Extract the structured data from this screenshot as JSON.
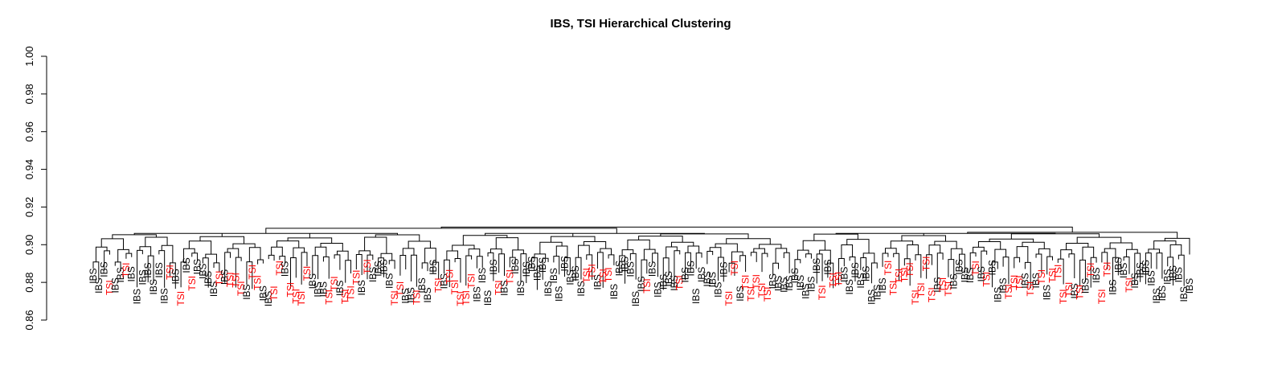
{
  "chart_data": {
    "type": "dendrogram",
    "title": "IBS, TSI Hierarchical Clustering",
    "xlabel": "",
    "ylabel": "",
    "ylim": [
      0.86,
      1.0
    ],
    "y_ticks": [
      0.86,
      0.88,
      0.9,
      0.92,
      0.94,
      0.96,
      0.98,
      1.0
    ],
    "y_tick_labels": [
      "0.86",
      "0.88",
      "0.90",
      "0.92",
      "0.94",
      "0.96",
      "0.98",
      "1.00"
    ],
    "grid": false,
    "legend": "none",
    "groups": [
      "IBS",
      "TSI"
    ],
    "group_colors": {
      "IBS": "#000000",
      "TSI": "#ff0000"
    },
    "root_height": 0.91,
    "top_merge_height_range": [
      0.906,
      0.91
    ],
    "merge_height_range": [
      0.89,
      0.905
    ],
    "leaf_label_height_range": [
      0.876,
      0.895
    ],
    "leaf_count": 200,
    "leaf_sequence": "IIITIITIIIIIIITITITIIIITITTTITTIITTITTTTIIITTITTTITIIIITTIITIIITITTTTTIIIITITIIIIIIIIIIIIITTITTIIIIIITIIIIITIIIIIIIITTITTTTTIIIIIIIIITITTIIIIIIIITTTTTTTTTITTIIIITITIIITTTITITITTTTITITITTIIITIIIIIIIIIII"
  }
}
